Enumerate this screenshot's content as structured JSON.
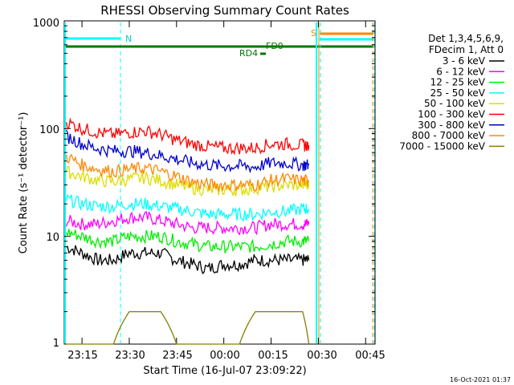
{
  "chart_data": {
    "type": "line",
    "title": "RHESSI Observing Summary Count Rates",
    "xlabel": "Start Time (16-Jul-07 23:09:22)",
    "ylabel": "Count Rate (s⁻¹ detector⁻¹)",
    "y_scale": "log",
    "ylim": [
      1,
      1000
    ],
    "xlim": [
      "23:09:22",
      "00:48:00"
    ],
    "x_ticks": [
      "23:15",
      "23:30",
      "23:45",
      "00:00",
      "00:15",
      "00:30",
      "00:45"
    ],
    "y_ticks": [
      "1",
      "10",
      "100",
      "1000"
    ],
    "legend_header": [
      "Det 1,3,4,5,6,9,",
      "FDecim 1, Att 0"
    ],
    "timestamp": "16-Oct-2021 01:37",
    "series": [
      {
        "name": "3 - 6 keV",
        "color": "#000000",
        "x": [
          "23:10",
          "23:15",
          "23:20",
          "23:25",
          "23:30",
          "23:35",
          "23:40",
          "23:45",
          "23:50",
          "23:55",
          "00:00",
          "00:05",
          "00:10",
          "00:15",
          "00:20",
          "00:25",
          "00:27"
        ],
        "values": [
          8,
          7,
          6,
          6,
          7,
          7,
          7,
          6,
          5.5,
          5,
          5.5,
          5.5,
          6,
          6,
          6,
          6,
          6
        ]
      },
      {
        "name": "6 - 12 keV",
        "color": "#ff00ff",
        "x": [
          "23:10",
          "23:15",
          "23:20",
          "23:25",
          "23:30",
          "23:35",
          "23:40",
          "23:45",
          "23:50",
          "23:55",
          "00:00",
          "00:05",
          "00:10",
          "00:15",
          "00:20",
          "00:25",
          "00:27"
        ],
        "values": [
          14,
          13,
          13,
          14,
          15,
          15,
          14,
          13,
          12,
          12,
          12,
          12,
          12,
          13,
          13,
          13,
          13
        ]
      },
      {
        "name": "12 - 25 keV",
        "color": "#00ee00",
        "x": [
          "23:10",
          "23:15",
          "23:20",
          "23:25",
          "23:30",
          "23:35",
          "23:40",
          "23:45",
          "23:50",
          "23:55",
          "00:00",
          "00:05",
          "00:10",
          "00:15",
          "00:20",
          "00:25",
          "00:27"
        ],
        "values": [
          11,
          10,
          9,
          9,
          10,
          10,
          10,
          9,
          8.5,
          8,
          8,
          8,
          8,
          8.5,
          9,
          9,
          9
        ]
      },
      {
        "name": "25 - 50 keV",
        "color": "#00ffff",
        "x": [
          "23:10",
          "23:15",
          "23:20",
          "23:25",
          "23:30",
          "23:35",
          "23:40",
          "23:45",
          "23:50",
          "23:55",
          "00:00",
          "00:05",
          "00:10",
          "00:15",
          "00:20",
          "00:25",
          "00:27"
        ],
        "values": [
          22,
          20,
          19,
          19,
          20,
          20,
          19,
          18,
          17,
          16,
          16,
          16,
          16,
          17,
          17,
          18,
          18
        ]
      },
      {
        "name": "50 - 100 keV",
        "color": "#dddd00",
        "x": [
          "23:10",
          "23:15",
          "23:20",
          "23:25",
          "23:30",
          "23:35",
          "23:40",
          "23:45",
          "23:50",
          "23:55",
          "00:00",
          "00:05",
          "00:10",
          "00:15",
          "00:20",
          "00:25",
          "00:27"
        ],
        "values": [
          40,
          36,
          33,
          32,
          34,
          35,
          33,
          30,
          28,
          27,
          27,
          27,
          28,
          29,
          30,
          30,
          30
        ]
      },
      {
        "name": "100 - 300 keV",
        "color": "#ff0000",
        "x": [
          "23:10",
          "23:15",
          "23:20",
          "23:25",
          "23:30",
          "23:35",
          "23:40",
          "23:45",
          "23:50",
          "23:55",
          "00:00",
          "00:05",
          "00:10",
          "00:15",
          "00:20",
          "00:25",
          "00:27"
        ],
        "values": [
          115,
          100,
          92,
          88,
          92,
          95,
          88,
          78,
          72,
          68,
          66,
          66,
          66,
          72,
          72,
          70,
          70
        ]
      },
      {
        "name": "300 - 800 keV",
        "color": "#0000cc",
        "x": [
          "23:10",
          "23:15",
          "23:20",
          "23:25",
          "23:30",
          "23:35",
          "23:40",
          "23:45",
          "23:50",
          "23:55",
          "00:00",
          "00:05",
          "00:10",
          "00:15",
          "00:20",
          "00:25",
          "00:27"
        ],
        "values": [
          85,
          72,
          65,
          62,
          62,
          60,
          56,
          52,
          48,
          46,
          45,
          45,
          44,
          48,
          48,
          46,
          46
        ]
      },
      {
        "name": "800 - 7000 keV",
        "color": "#ff8800",
        "x": [
          "23:10",
          "23:15",
          "23:20",
          "23:25",
          "23:30",
          "23:35",
          "23:40",
          "23:45",
          "23:50",
          "23:55",
          "00:00",
          "00:05",
          "00:10",
          "00:15",
          "00:20",
          "00:25",
          "00:27"
        ],
        "values": [
          55,
          46,
          42,
          40,
          42,
          43,
          40,
          36,
          32,
          30,
          30,
          30,
          30,
          33,
          34,
          33,
          33
        ]
      },
      {
        "name": "7000 - 15000 keV",
        "color": "#808000",
        "x": [
          "23:10",
          "23:15",
          "23:20",
          "23:25",
          "23:30",
          "23:35",
          "23:40",
          "23:45",
          "23:50",
          "23:55",
          "00:00",
          "00:05",
          "00:10",
          "00:15",
          "00:20",
          "00:25",
          "00:27"
        ],
        "values": [
          1,
          1,
          1,
          1,
          2,
          2,
          2,
          1,
          1,
          1,
          1,
          1,
          2,
          2,
          2,
          2,
          1
        ]
      }
    ],
    "annotations": [
      {
        "label": "N",
        "color": "#00ffff"
      },
      {
        "label": "S",
        "color": "#ff8800"
      },
      {
        "label": "FD0",
        "color": "#008800"
      },
      {
        "label": "RD4",
        "color": "#008800"
      }
    ]
  }
}
